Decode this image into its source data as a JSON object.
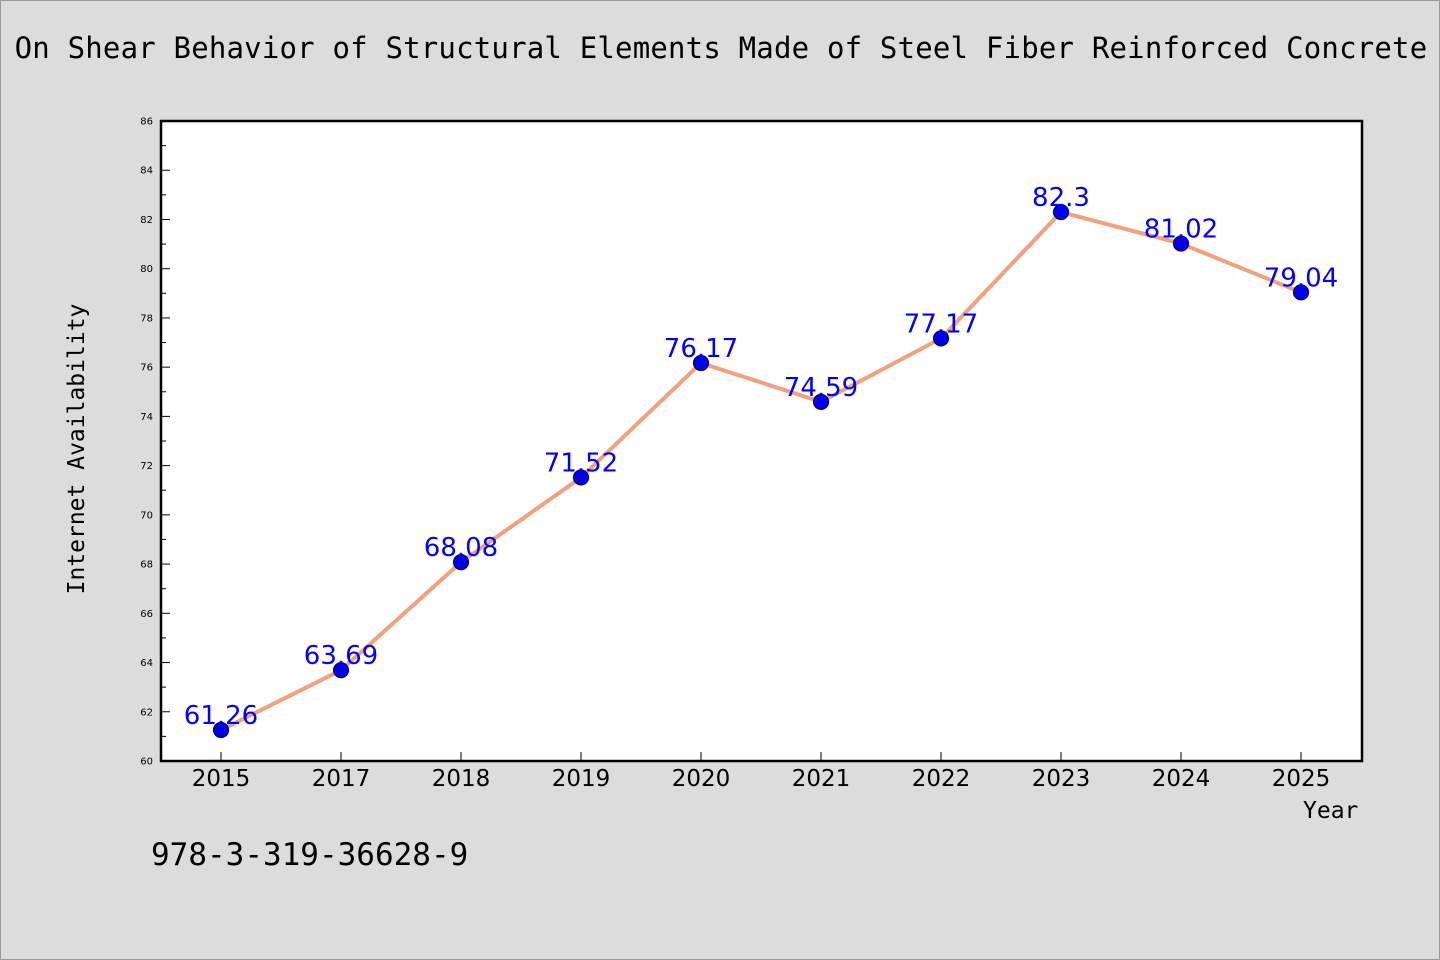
{
  "chart_data": {
    "type": "line",
    "title": "On Shear Behavior of Structural Elements Made of Steel Fiber Reinforced Concrete",
    "xlabel": "Year",
    "ylabel": "Internet Availability",
    "categories": [
      "2015",
      "2017",
      "2018",
      "2019",
      "2020",
      "2021",
      "2022",
      "2023",
      "2024",
      "2025"
    ],
    "values": [
      61.26,
      63.69,
      68.08,
      71.52,
      76.17,
      74.59,
      77.17,
      82.3,
      81.02,
      79.04
    ],
    "data_labels": [
      "61.26",
      "63.69",
      "68.08",
      "71.52",
      "76.17",
      "74.59",
      "77.17",
      "82.3",
      "81.02",
      "79.04"
    ],
    "ylim": [
      60,
      86
    ],
    "yticks": [
      "60",
      "62",
      "64",
      "66",
      "68",
      "70",
      "72",
      "74",
      "76",
      "78",
      "80",
      "82",
      "84",
      "86"
    ],
    "grid": false,
    "line_color": "#f4a07f",
    "marker_color": "#0000ee",
    "label_color": "#0000ff"
  },
  "footer": {
    "isbn": "978-3-319-36628-9"
  }
}
